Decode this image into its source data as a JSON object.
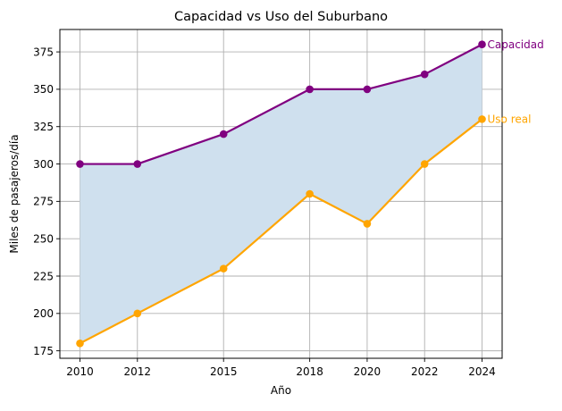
{
  "chart_data": {
    "type": "line",
    "title": "Capacidad vs Uso del Suburbano",
    "xlabel": "Año",
    "ylabel": "Miles de pasajeros/día",
    "x": [
      2010,
      2012,
      2015,
      2018,
      2020,
      2022,
      2024
    ],
    "xticks": [
      "2010",
      "2012",
      "2015",
      "2018",
      "2020",
      "2022",
      "2024"
    ],
    "yticks": [
      "175",
      "200",
      "225",
      "250",
      "275",
      "300",
      "325",
      "350",
      "375"
    ],
    "xlim": [
      2009.3,
      2024.7
    ],
    "ylim": [
      170,
      390
    ],
    "grid": true,
    "legend": "none",
    "fill_between": {
      "upper": "Capacidad",
      "lower": "Uso real",
      "color": "#cfe0ee"
    },
    "series": [
      {
        "name": "Capacidad",
        "values": [
          300,
          300,
          320,
          350,
          350,
          360,
          380
        ],
        "color": "#800080"
      },
      {
        "name": "Uso real",
        "values": [
          180,
          200,
          230,
          280,
          260,
          300,
          330
        ],
        "color": "#ffa500"
      }
    ]
  }
}
